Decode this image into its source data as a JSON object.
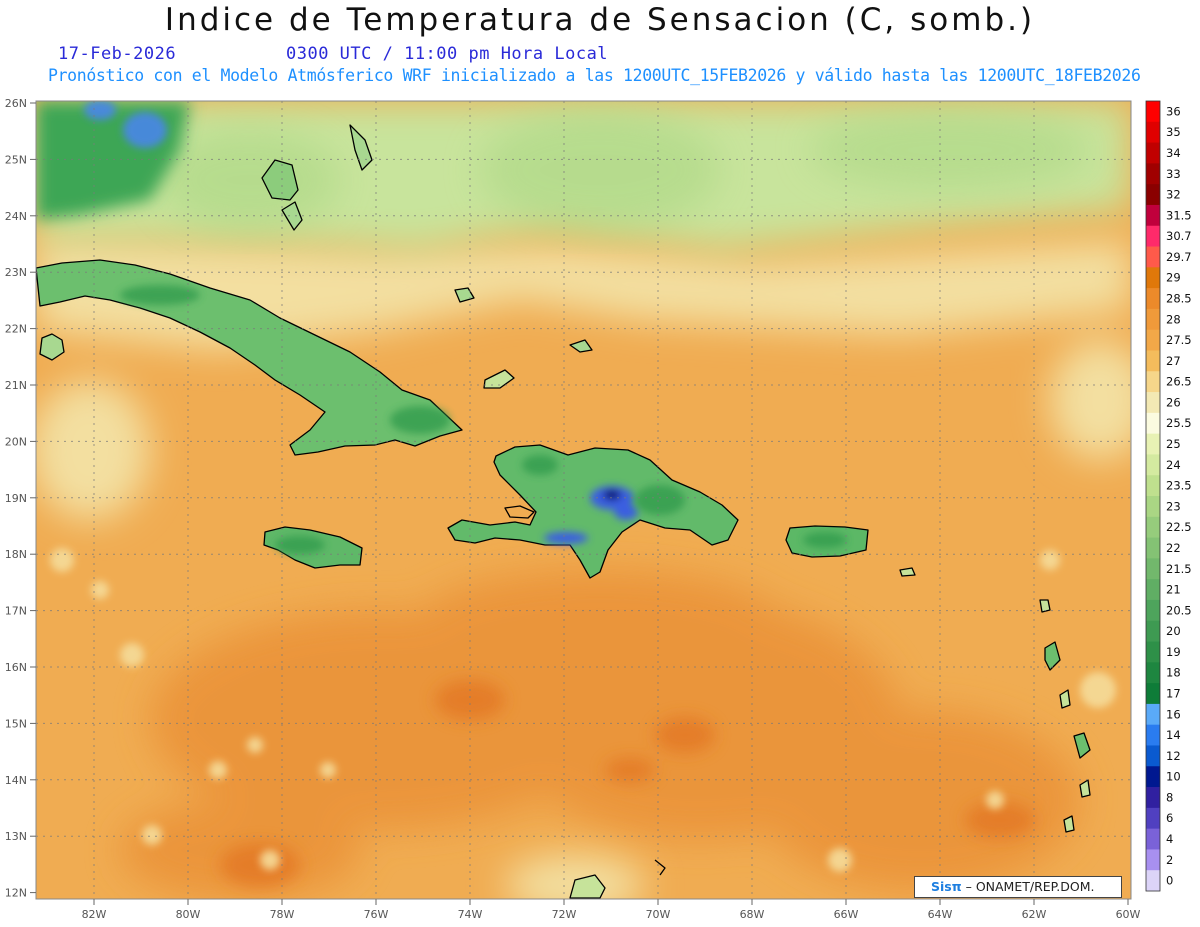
{
  "header": {
    "title": "Indice de Temperatura de Sensacion (C, somb.)",
    "date": "17-Feb-2026",
    "time": "0300 UTC / 11:00 pm Hora Local",
    "description": "Pronóstico con el Modelo Atmósferico WRF inicializado a las 1200UTC_15FEB2026 y válido hasta las  1200UTC_18FEB2026"
  },
  "map": {
    "lat_labels": [
      "26N",
      "25N",
      "24N",
      "23N",
      "22N",
      "21N",
      "20N",
      "19N",
      "18N",
      "17N",
      "16N",
      "15N",
      "14N",
      "13N",
      "12N"
    ],
    "lon_labels": [
      "82W",
      "80W",
      "78W",
      "76W",
      "74W",
      "72W",
      "70W",
      "68W",
      "66W",
      "64W",
      "62W",
      "60W"
    ],
    "grid": "dotted",
    "colors": {
      "ocean_warm": "#f0ac52",
      "ocean_hot": "#e98b35",
      "subtropic_pale": "#f2e6a8",
      "north_green": "#c6e39a",
      "land_green": "#5cb86a",
      "highland_blue": "#3b5fe0"
    }
  },
  "colorbar": {
    "levels": [
      {
        "label": "36",
        "color": "#ff0000"
      },
      {
        "label": "35",
        "color": "#e00000"
      },
      {
        "label": "34",
        "color": "#c00000"
      },
      {
        "label": "33",
        "color": "#a00000"
      },
      {
        "label": "32",
        "color": "#8a0000"
      },
      {
        "label": "31.5",
        "color": "#c0003c"
      },
      {
        "label": "30.7",
        "color": "#ff2a6a"
      },
      {
        "label": "29.7",
        "color": "#ff5a4a"
      },
      {
        "label": "29",
        "color": "#e0780a"
      },
      {
        "label": "28.5",
        "color": "#ec8a2a"
      },
      {
        "label": "28",
        "color": "#f09a3a"
      },
      {
        "label": "27.5",
        "color": "#f2a848"
      },
      {
        "label": "27",
        "color": "#f4bc5c"
      },
      {
        "label": "26.5",
        "color": "#f6d68a"
      },
      {
        "label": "26",
        "color": "#f3e9b4"
      },
      {
        "label": "25.5",
        "color": "#fbfbe0"
      },
      {
        "label": "25",
        "color": "#e8f2b4"
      },
      {
        "label": "24",
        "color": "#d4eaa0"
      },
      {
        "label": "23.5",
        "color": "#bfe08e"
      },
      {
        "label": "23",
        "color": "#aad684"
      },
      {
        "label": "22.5",
        "color": "#96cc7c"
      },
      {
        "label": "22",
        "color": "#84c274"
      },
      {
        "label": "21.5",
        "color": "#72b86c"
      },
      {
        "label": "21",
        "color": "#60ae64"
      },
      {
        "label": "20.5",
        "color": "#4ea45c"
      },
      {
        "label": "20",
        "color": "#3e9a52"
      },
      {
        "label": "19",
        "color": "#2e9048"
      },
      {
        "label": "18",
        "color": "#1e8640"
      },
      {
        "label": "17",
        "color": "#0e7c38"
      },
      {
        "label": "16",
        "color": "#5aaaf8"
      },
      {
        "label": "14",
        "color": "#2a7cf0"
      },
      {
        "label": "12",
        "color": "#0a5ad0"
      },
      {
        "label": "10",
        "color": "#001890"
      },
      {
        "label": "8",
        "color": "#3020a0"
      },
      {
        "label": "6",
        "color": "#5040c0"
      },
      {
        "label": "4",
        "color": "#7a62d8"
      },
      {
        "label": "2",
        "color": "#a890f0"
      },
      {
        "label": "0",
        "color": "#dcd4f8"
      }
    ]
  },
  "credit": {
    "brand": "Sisπ",
    "text": " – ONAMET/REP.DOM."
  }
}
